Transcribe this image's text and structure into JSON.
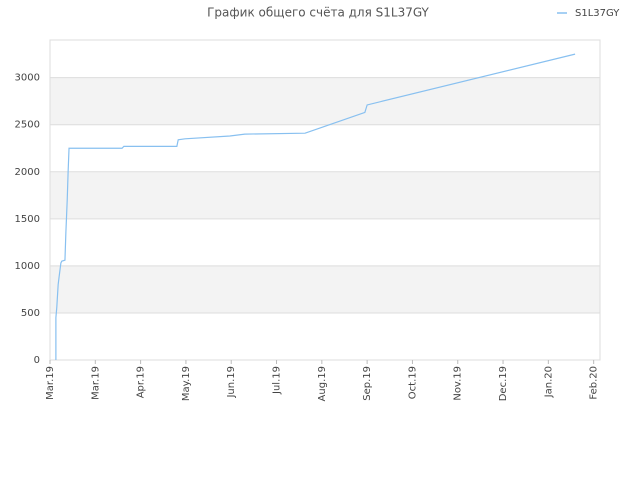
{
  "chart_data": {
    "type": "line",
    "title": "График общего счёта для S1L37GY",
    "x": [
      0.13,
      0.13,
      0.15,
      0.18,
      0.2,
      0.24,
      0.26,
      0.33,
      0.35,
      0.38,
      0.4,
      0.42,
      1.59,
      1.63,
      2.8,
      2.83,
      2.98,
      3.97,
      4.3,
      5.63,
      6.95,
      7.0,
      11.59
    ],
    "series": [
      {
        "name": "S1L37GY",
        "color": "#88c0f0",
        "values": [
          0,
          450,
          560,
          800,
          880,
          1030,
          1050,
          1060,
          1350,
          1700,
          2000,
          2250,
          2250,
          2270,
          2270,
          2340,
          2350,
          2380,
          2400,
          2410,
          2630,
          2710,
          3250
        ]
      }
    ],
    "xlim": [
      0,
      12.14
    ],
    "xticks": [
      {
        "value": 0,
        "label": "Mar.19"
      },
      {
        "value": 1,
        "label": "Mar.19"
      },
      {
        "value": 2,
        "label": "Apr.19"
      },
      {
        "value": 3,
        "label": "May.19"
      },
      {
        "value": 4,
        "label": "Jun.19"
      },
      {
        "value": 5,
        "label": "Jul.19"
      },
      {
        "value": 6,
        "label": "Aug.19"
      },
      {
        "value": 7,
        "label": "Sep.19"
      },
      {
        "value": 8,
        "label": "Oct.19"
      },
      {
        "value": 9,
        "label": "Nov.19"
      },
      {
        "value": 10,
        "label": "Dec.19"
      },
      {
        "value": 11,
        "label": "Jan.20"
      },
      {
        "value": 12,
        "label": "Feb.20"
      }
    ],
    "ylim": [
      0,
      3400
    ],
    "yticks": [
      0,
      500,
      1000,
      1500,
      2000,
      2500,
      3000
    ],
    "grid": true,
    "legend": "top-right"
  }
}
